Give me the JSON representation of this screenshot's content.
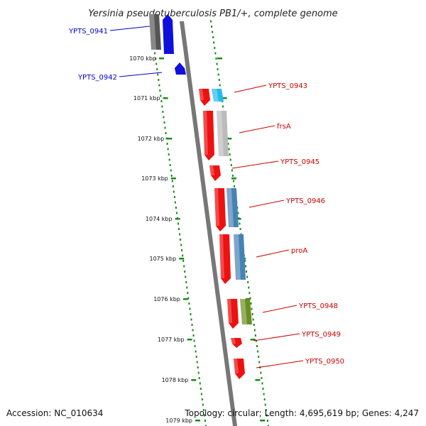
{
  "title": "Yersinia pseudotuberculosis PB1/+, complete genome",
  "footer": {
    "accession": "Accession: NC_010634",
    "topology": "Topology: circular; Length: 4,695,619 bp; Genes: 4,247"
  },
  "colors": {
    "label_left": "#0000cc",
    "label_right": "#cc0000",
    "tick": "#1a8a1a",
    "backbone": "#777777"
  },
  "ruler": [
    {
      "label": "1070 kbp"
    },
    {
      "label": "1071 kbp"
    },
    {
      "label": "1072 kbp"
    },
    {
      "label": "1073 kbp"
    },
    {
      "label": "1074 kbp"
    },
    {
      "label": "1075 kbp"
    },
    {
      "label": "1076 kbp"
    },
    {
      "label": "1077 kbp"
    },
    {
      "label": "1078 kbp"
    },
    {
      "label": "1079 kbp"
    }
  ],
  "genes": [
    {
      "name": "YPTS_0941",
      "strand": "-",
      "color": "#1010dd",
      "cog_color": "#555555"
    },
    {
      "name": "YPTS_0942",
      "strand": "-",
      "color": "#1010dd",
      "cog_color": ""
    },
    {
      "name": "YPTS_0943",
      "strand": "+",
      "color": "#ee1111",
      "cog_color": "#22bbee"
    },
    {
      "name": "frsA",
      "strand": "+",
      "color": "#ee1111",
      "cog_color": "#bbbbbb"
    },
    {
      "name": "YPTS_0945",
      "strand": "+",
      "color": "#ee1111",
      "cog_color": ""
    },
    {
      "name": "YPTS_0946",
      "strand": "+",
      "color": "#ee1111",
      "cog_color": "#4682b4"
    },
    {
      "name": "proA",
      "strand": "+",
      "color": "#ee1111",
      "cog_color": "#4682b4"
    },
    {
      "name": "YPTS_0948",
      "strand": "+",
      "color": "#ee1111",
      "cog_color": "#6b8e23"
    },
    {
      "name": "YPTS_0949",
      "strand": "+",
      "color": "#ee1111",
      "cog_color": ""
    },
    {
      "name": "YPTS_0950",
      "strand": "+",
      "color": "#ee1111",
      "cog_color": ""
    }
  ]
}
